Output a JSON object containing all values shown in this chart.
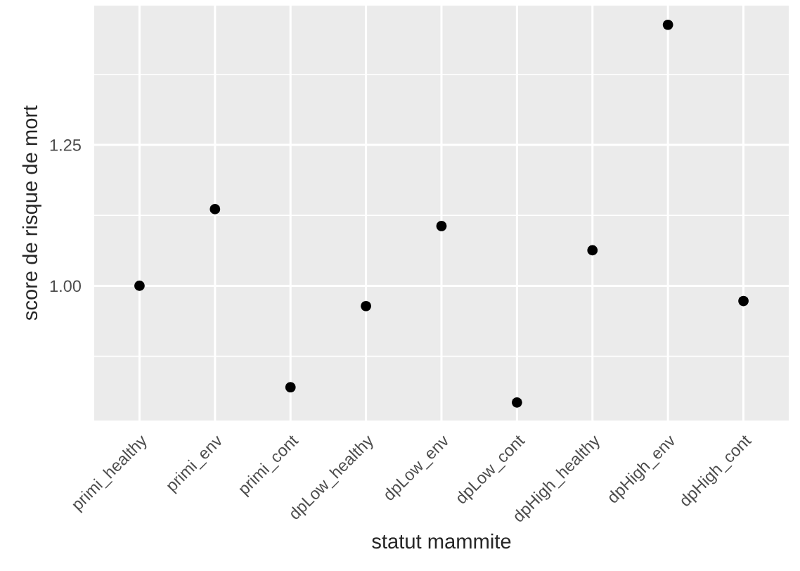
{
  "chart_data": {
    "type": "scatter",
    "xlabel": "statut mammite",
    "ylabel": "score de risque de mort",
    "categories": [
      "primi_healthy",
      "primi_env",
      "primi_cont",
      "dpLow_healthy",
      "dpLow_env",
      "dpLow_cont",
      "dpHigh_healthy",
      "dpHigh_env",
      "dpHigh_cont"
    ],
    "series": [
      {
        "color": "#000000",
        "values": [
          1.0,
          1.136,
          0.82,
          0.964,
          1.106,
          0.793,
          1.063,
          1.463,
          0.973
        ]
      }
    ],
    "ylim": [
      0.761,
      1.497
    ],
    "yticks": [
      {
        "value": 0.875,
        "label": null
      },
      {
        "value": 1,
        "label": "1.00"
      },
      {
        "value": 1.125,
        "label": null
      },
      1.25,
      {
        "value": 1.375,
        "label": null
      }
    ],
    "grid": true,
    "marker": "circle",
    "legend": false
  }
}
